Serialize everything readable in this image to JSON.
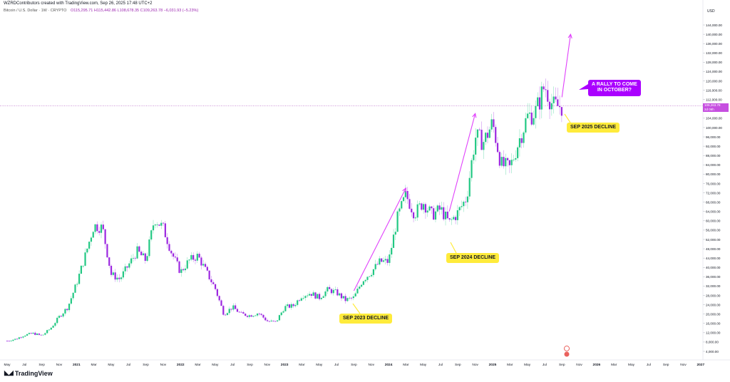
{
  "header": {
    "attribution": "WZRDContributors created with TradingView.com, Sep 26, 2025 17:48 UTC+2",
    "symbol": "Bitcoin / U.S. Dollar · 1W · CRYPTO",
    "ohlc": "O115,295.71  H115,442.86  L108,678.35  C109,263.78  −6,031.93 (−5.23%)"
  },
  "brand": {
    "name": "TradingView",
    "logo_icon": "tradingview-logo-icon"
  },
  "price_axis": {
    "currency": "USD",
    "ticks": [
      "144,000.00",
      "140,000.00",
      "136,000.00",
      "132,000.00",
      "128,000.00",
      "124,000.00",
      "120,000.00",
      "116,000.00",
      "112,000.00",
      "104,000.00",
      "100,000.00",
      "96,000.00",
      "92,000.00",
      "88,000.00",
      "84,000.00",
      "80,000.00",
      "76,000.00",
      "72,000.00",
      "68,000.00",
      "64,000.00",
      "60,000.00",
      "56,000.00",
      "52,000.00",
      "48,000.00",
      "44,000.00",
      "40,000.00",
      "36,000.00",
      "32,000.00",
      "28,000.00",
      "24,000.00",
      "20,000.00",
      "16,000.00",
      "12,000.00",
      "8,000.00",
      "4,000.00"
    ],
    "current_price": "109,263.78",
    "current_time": "2d 06h"
  },
  "annotations": {
    "sep2023": "SEP 2023 DECLINE",
    "sep2024": "SEP 2024 DECLINE",
    "sep2025": "SEP 2025 DECLINE",
    "rally_line1": "A RALLY TO COME",
    "rally_line2": "IN  OCTOBER?"
  },
  "colors": {
    "up": "#22c883",
    "down": "#9c27e0",
    "arrow": "#e040fb",
    "callout_yellow": "#ffeb3b",
    "callout_purple": "#aa00ff"
  },
  "chart_data": {
    "type": "candlestick",
    "title": "Bitcoin / U.S. Dollar · 1W · CRYPTO",
    "time_labels": [
      {
        "label": "May",
        "date": "2020-05"
      },
      {
        "label": "Jul",
        "date": "2020-07"
      },
      {
        "label": "Sep",
        "date": "2020-09"
      },
      {
        "label": "Nov",
        "date": "2020-11"
      },
      {
        "label": "2021",
        "date": "2021-01"
      },
      {
        "label": "Mar",
        "date": "2021-03"
      },
      {
        "label": "May",
        "date": "2021-05"
      },
      {
        "label": "Jul",
        "date": "2021-07"
      },
      {
        "label": "Sep",
        "date": "2021-09"
      },
      {
        "label": "Nov",
        "date": "2021-11"
      },
      {
        "label": "2022",
        "date": "2022-01"
      },
      {
        "label": "Mar",
        "date": "2022-03"
      },
      {
        "label": "May",
        "date": "2022-05"
      },
      {
        "label": "Jul",
        "date": "2022-07"
      },
      {
        "label": "Sep",
        "date": "2022-09"
      },
      {
        "label": "Nov",
        "date": "2022-11"
      },
      {
        "label": "2023",
        "date": "2023-01"
      },
      {
        "label": "Mar",
        "date": "2023-03"
      },
      {
        "label": "May",
        "date": "2023-05"
      },
      {
        "label": "Jul",
        "date": "2023-07"
      },
      {
        "label": "Sep",
        "date": "2023-09"
      },
      {
        "label": "Nov",
        "date": "2023-11"
      },
      {
        "label": "2024",
        "date": "2024-01"
      },
      {
        "label": "Mar",
        "date": "2024-03"
      },
      {
        "label": "May",
        "date": "2024-05"
      },
      {
        "label": "Jul",
        "date": "2024-07"
      },
      {
        "label": "Sep",
        "date": "2024-09"
      },
      {
        "label": "Nov",
        "date": "2024-11"
      },
      {
        "label": "2025",
        "date": "2025-01"
      },
      {
        "label": "Mar",
        "date": "2025-03"
      },
      {
        "label": "May",
        "date": "2025-05"
      },
      {
        "label": "Jul",
        "date": "2025-07"
      },
      {
        "label": "Sep",
        "date": "2025-09"
      },
      {
        "label": "Nov",
        "date": "2025-11"
      },
      {
        "label": "2026",
        "date": "2026-01"
      },
      {
        "label": "Mar",
        "date": "2026-03"
      },
      {
        "label": "May",
        "date": "2026-05"
      },
      {
        "label": "Jul",
        "date": "2026-07"
      },
      {
        "label": "Sep",
        "date": "2026-09"
      },
      {
        "label": "Nov",
        "date": "2026-11"
      },
      {
        "label": "2027",
        "date": "2027-01"
      }
    ],
    "ylim": [
      0,
      148000
    ],
    "grid": false,
    "close_path": [
      [
        "2020-05",
        8500
      ],
      [
        "2020-06",
        9300
      ],
      [
        "2020-07",
        11000
      ],
      [
        "2020-08",
        11700
      ],
      [
        "2020-09",
        10700
      ],
      [
        "2020-10",
        13800
      ],
      [
        "2020-11",
        18800
      ],
      [
        "2020-12",
        23000
      ],
      [
        "2021-01",
        33000
      ],
      [
        "2021-02",
        45000
      ],
      [
        "2021-03",
        58000
      ],
      [
        "2021-04",
        57000
      ],
      [
        "2021-05",
        37000
      ],
      [
        "2021-06",
        35000
      ],
      [
        "2021-07",
        41000
      ],
      [
        "2021-08",
        47000
      ],
      [
        "2021-09",
        43000
      ],
      [
        "2021-10",
        61000
      ],
      [
        "2021-11",
        57000
      ],
      [
        "2021-12",
        46000
      ],
      [
        "2022-01",
        38000
      ],
      [
        "2022-02",
        43000
      ],
      [
        "2022-03",
        45000
      ],
      [
        "2022-04",
        38000
      ],
      [
        "2022-05",
        31000
      ],
      [
        "2022-06",
        20000
      ],
      [
        "2022-07",
        23000
      ],
      [
        "2022-08",
        20000
      ],
      [
        "2022-09",
        19400
      ],
      [
        "2022-10",
        20500
      ],
      [
        "2022-11",
        17000
      ],
      [
        "2022-12",
        16500
      ],
      [
        "2023-01",
        23000
      ],
      [
        "2023-02",
        23500
      ],
      [
        "2023-03",
        28000
      ],
      [
        "2023-04",
        29000
      ],
      [
        "2023-05",
        27000
      ],
      [
        "2023-06",
        30500
      ],
      [
        "2023-07",
        29200
      ],
      [
        "2023-08",
        26000
      ],
      [
        "2023-09",
        27000
      ],
      [
        "2023-10",
        34500
      ],
      [
        "2023-11",
        38000
      ],
      [
        "2023-12",
        42500
      ],
      [
        "2024-01",
        42500
      ],
      [
        "2024-02",
        61000
      ],
      [
        "2024-03",
        71000
      ],
      [
        "2024-04",
        63000
      ],
      [
        "2024-05",
        68000
      ],
      [
        "2024-06",
        62500
      ],
      [
        "2024-07",
        65000
      ],
      [
        "2024-08",
        59000
      ],
      [
        "2024-09",
        63500
      ],
      [
        "2024-10",
        70000
      ],
      [
        "2024-11",
        96000
      ],
      [
        "2024-12",
        94000
      ],
      [
        "2025-01",
        102000
      ],
      [
        "2025-02",
        84000
      ],
      [
        "2025-03",
        82500
      ],
      [
        "2025-04",
        94000
      ],
      [
        "2025-05",
        104500
      ],
      [
        "2025-06",
        107000
      ],
      [
        "2025-07",
        118000
      ],
      [
        "2025-08",
        109000
      ],
      [
        "2025-09",
        109263.78
      ]
    ],
    "trend_arrows": [
      {
        "from": [
          "2023-09",
          30000
        ],
        "to": [
          "2024-03",
          74000
        ]
      },
      {
        "from": [
          "2024-08",
          64000
        ],
        "to": [
          "2024-11",
          106000
        ]
      },
      {
        "from": [
          "2025-09",
          113000
        ],
        "to": [
          "2025-10",
          140000
        ]
      }
    ]
  }
}
